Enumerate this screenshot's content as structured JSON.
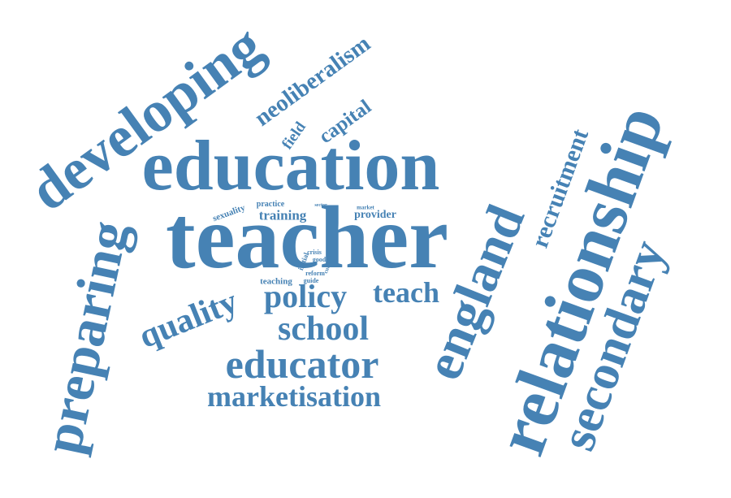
{
  "cloud": {
    "color": "#4682b4",
    "background": "#ffffff",
    "words": [
      {
        "id": "teacher",
        "text": "teacher"
      },
      {
        "id": "education",
        "text": "education"
      },
      {
        "id": "developing",
        "text": "developing"
      },
      {
        "id": "relationship",
        "text": "relationship"
      },
      {
        "id": "england",
        "text": "england"
      },
      {
        "id": "secondary",
        "text": "secondary"
      },
      {
        "id": "preparing",
        "text": "preparing"
      },
      {
        "id": "educator",
        "text": "educator"
      },
      {
        "id": "school",
        "text": "school"
      },
      {
        "id": "policy",
        "text": "policy"
      },
      {
        "id": "teach",
        "text": "teach"
      },
      {
        "id": "quality",
        "text": "quality"
      },
      {
        "id": "marketisation",
        "text": "marketisation"
      },
      {
        "id": "recruitment",
        "text": "recruitment"
      },
      {
        "id": "neoliberalism",
        "text": "neoliberalism"
      },
      {
        "id": "capital",
        "text": "capital"
      },
      {
        "id": "field",
        "text": "field"
      },
      {
        "id": "training",
        "text": "training"
      },
      {
        "id": "provider",
        "text": "provider"
      },
      {
        "id": "sexuality",
        "text": "sexuality"
      },
      {
        "id": "practice",
        "text": "practice"
      },
      {
        "id": "teaching",
        "text": "teaching"
      },
      {
        "id": "market",
        "text": "market"
      },
      {
        "id": "sector",
        "text": "sector"
      },
      {
        "id": "reform",
        "text": "reform"
      },
      {
        "id": "initial",
        "text": "initial"
      },
      {
        "id": "crisis",
        "text": "crisis"
      },
      {
        "id": "good",
        "text": "good"
      },
      {
        "id": "guide",
        "text": "guide"
      },
      {
        "id": "current",
        "text": "current"
      }
    ]
  }
}
